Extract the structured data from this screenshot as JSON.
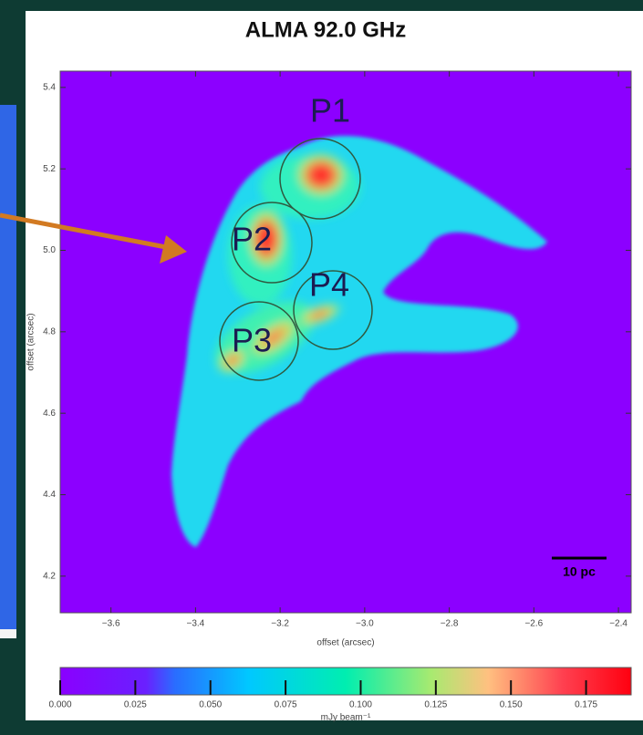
{
  "chart_data": {
    "type": "intensity-map",
    "title": "ALMA 92.0 GHz",
    "xlabel": "offset (arcsec)",
    "ylabel": "offset (arcsec)",
    "xlim": [
      -3.72,
      -2.37
    ],
    "ylim": [
      4.11,
      5.44
    ],
    "xticks": [
      {
        "value": -3.6,
        "label": "−3.6"
      },
      {
        "value": -3.4,
        "label": "−3.4"
      },
      {
        "value": -3.2,
        "label": "−3.2"
      },
      {
        "value": -3.0,
        "label": "−3.0"
      },
      {
        "value": -2.8,
        "label": "−2.8"
      },
      {
        "value": -2.6,
        "label": "−2.6"
      },
      {
        "value": -2.4,
        "label": "−2.4"
      }
    ],
    "yticks": [
      5.4,
      5.2,
      {
        "value": 5.0,
        "label": "5.0"
      },
      4.8,
      4.6,
      4.4,
      4.2
    ],
    "colorbar": {
      "label": "mJy beam⁻¹",
      "lim": [
        0,
        0.19
      ],
      "ticks": [
        {
          "value": 0,
          "label": "0.000"
        },
        {
          "value": 0.025,
          "label": "0.025"
        },
        {
          "value": 0.05,
          "label": "0.050"
        },
        {
          "value": 0.075,
          "label": "0.075"
        },
        {
          "value": 0.1,
          "label": "0.100"
        },
        {
          "value": 0.125,
          "label": "0.125"
        },
        {
          "value": 0.15,
          "label": "0.150"
        },
        {
          "value": 0.175,
          "label": "0.175"
        }
      ]
    },
    "annotations": [
      "P1",
      "P2",
      "P3",
      "P4"
    ],
    "scale_bar": "10 pc"
  }
}
